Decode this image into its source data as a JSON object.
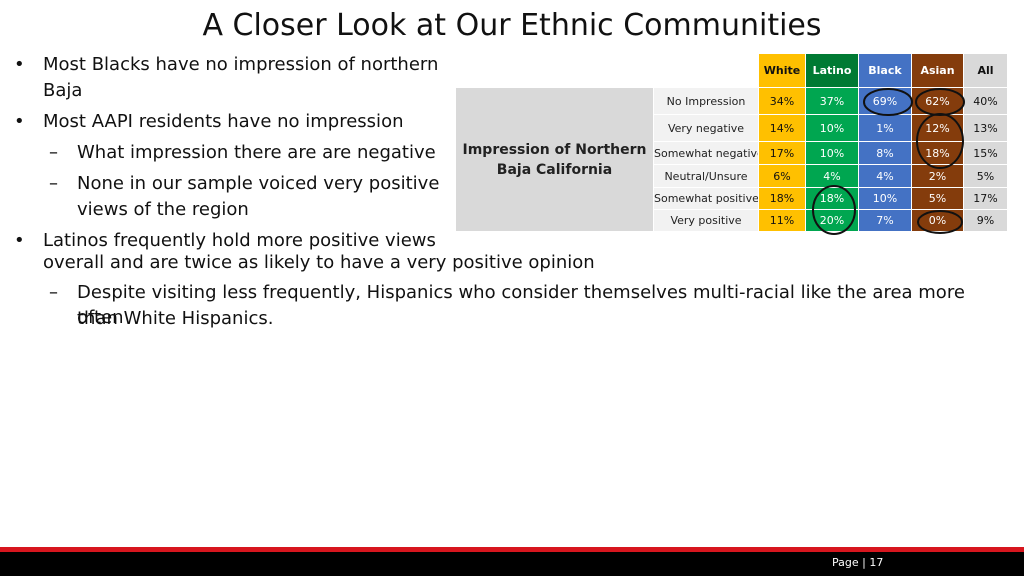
{
  "title": "A Closer Look at Our Ethnic Communities",
  "bullets": {
    "b1_line1": "Most Blacks have no impression of northern",
    "b1_line2": "Baja",
    "b2": "Most AAPI residents have no impression",
    "b2_sub1": "What impression there are are negative",
    "b2_sub2_line1": "None in our sample voiced very positive",
    "b2_sub2_line2": "views of the region",
    "b3_line1": "Latinos frequently hold more positive views",
    "b3_line2": "overall and are twice as likely to have a very positive opinion",
    "b3_sub1_line1": "Despite visiting less frequently, Hispanics who consider themselves multi-racial like the area more often",
    "b3_sub1_line2": "than White Hispanics.",
    "bullet_glyph": "•",
    "dash_glyph": "–"
  },
  "table": {
    "group_label": "Impression of Northern Baja California",
    "columns": [
      "White",
      "Latino",
      "Black",
      "Asian",
      "All"
    ],
    "rows": [
      {
        "label": "No Impression",
        "values": [
          "34%",
          "37%",
          "69%",
          "62%",
          "40%"
        ]
      },
      {
        "label": "Very negative",
        "values": [
          "14%",
          "10%",
          "1%",
          "12%",
          "13%"
        ]
      },
      {
        "label": "Somewhat negative",
        "values": [
          "17%",
          "10%",
          "8%",
          "18%",
          "15%"
        ]
      },
      {
        "label": "Neutral/Unsure",
        "values": [
          "6%",
          "4%",
          "4%",
          "2%",
          "5%"
        ]
      },
      {
        "label": "Somewhat positive",
        "values": [
          "18%",
          "18%",
          "10%",
          "5%",
          "17%"
        ]
      },
      {
        "label": "Very positive",
        "values": [
          "11%",
          "20%",
          "7%",
          "0%",
          "9%"
        ]
      }
    ],
    "colors": {
      "white": "#ffc000",
      "latino": "#00a650",
      "black": "#4472c4",
      "asian": "#843c0c",
      "all": "#d9d9d9"
    }
  },
  "footer": {
    "page_label": "Page | 17",
    "accent_color": "#d7161e"
  }
}
